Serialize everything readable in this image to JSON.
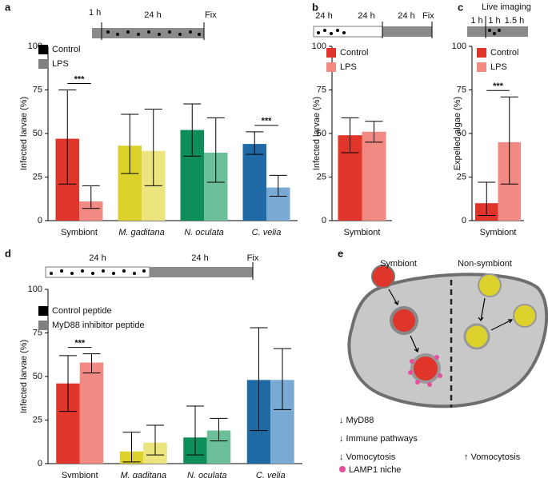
{
  "chart_data": [
    {
      "type": "bar",
      "panel": "a",
      "ylabel": "Infected larvae (%)",
      "ylim": [
        0,
        100
      ],
      "yticks": [
        0,
        25,
        50,
        75,
        100
      ],
      "timeline": [
        "1 h",
        "24 h",
        "Fix"
      ],
      "categories": [
        "Symbiont",
        "M. gaditana",
        "N. oculata",
        "C. velia"
      ],
      "series": [
        {
          "name": "Control",
          "color": "#000000",
          "colors": [
            "#e0352b",
            "#ddd12b",
            "#0e8f5a",
            "#1f69a4"
          ],
          "values": [
            47,
            43,
            52,
            44
          ],
          "err_low": [
            21,
            27,
            37,
            38
          ],
          "err_high": [
            75,
            61,
            67,
            51
          ]
        },
        {
          "name": "LPS",
          "color": "#808080",
          "colors": [
            "#f08a82",
            "#ece47c",
            "#6bbf99",
            "#79aad3"
          ],
          "values": [
            11,
            40,
            39,
            19
          ],
          "err_low": [
            7,
            20,
            22,
            14
          ],
          "err_high": [
            20,
            64,
            59,
            26
          ]
        }
      ],
      "annotations": [
        {
          "text": "***",
          "category": "Symbiont"
        },
        {
          "text": "***",
          "category": "C. velia"
        }
      ]
    },
    {
      "type": "bar",
      "panel": "b",
      "ylabel": "Infected larvae (%)",
      "ylim": [
        0,
        100
      ],
      "yticks": [
        0,
        25,
        50,
        75,
        100
      ],
      "timeline": [
        "24 h",
        "24 h",
        "24 h",
        "Fix"
      ],
      "categories": [
        "Symbiont"
      ],
      "series": [
        {
          "name": "Control",
          "color": "#e0352b",
          "colors": [
            "#e0352b"
          ],
          "values": [
            49
          ],
          "err_low": [
            39
          ],
          "err_high": [
            59
          ]
        },
        {
          "name": "LPS",
          "color": "#f08a82",
          "colors": [
            "#f08a82"
          ],
          "values": [
            51
          ],
          "err_low": [
            45
          ],
          "err_high": [
            57
          ]
        }
      ],
      "annotations": []
    },
    {
      "type": "bar",
      "panel": "c",
      "ylabel": "Expelled algae (%)",
      "ylim": [
        0,
        100
      ],
      "yticks": [
        0,
        25,
        50,
        75,
        100
      ],
      "timeline": [
        "Live imaging",
        "1 h",
        "1 h",
        "1.5 h"
      ],
      "categories": [
        "Symbiont"
      ],
      "series": [
        {
          "name": "Control",
          "color": "#e0352b",
          "colors": [
            "#e0352b"
          ],
          "values": [
            10
          ],
          "err_low": [
            3
          ],
          "err_high": [
            22
          ]
        },
        {
          "name": "LPS",
          "color": "#f08a82",
          "colors": [
            "#f08a82"
          ],
          "values": [
            45
          ],
          "err_low": [
            21
          ],
          "err_high": [
            71
          ]
        }
      ],
      "annotations": [
        {
          "text": "***",
          "category": "Symbiont"
        }
      ]
    },
    {
      "type": "bar",
      "panel": "d",
      "ylabel": "Infected larvae (%)",
      "ylim": [
        0,
        100
      ],
      "yticks": [
        0,
        25,
        50,
        75,
        100
      ],
      "timeline": [
        "24 h",
        "24 h",
        "Fix"
      ],
      "categories": [
        "Symbiont",
        "M. gaditana",
        "N. oculata",
        "C. velia"
      ],
      "series": [
        {
          "name": "Control peptide",
          "color": "#000000",
          "colors": [
            "#e0352b",
            "#ddd12b",
            "#0e8f5a",
            "#1f69a4"
          ],
          "values": [
            46,
            7,
            15,
            48
          ],
          "err_low": [
            30,
            1,
            5,
            19
          ],
          "err_high": [
            62,
            18,
            33,
            78
          ]
        },
        {
          "name": "MyD88 inhibitor peptide",
          "color": "#808080",
          "colors": [
            "#f08a82",
            "#ece47c",
            "#6bbf99",
            "#79aad3"
          ],
          "values": [
            58,
            12,
            19,
            48
          ],
          "err_low": [
            52,
            5,
            13,
            31
          ],
          "err_high": [
            63,
            22,
            26,
            66
          ]
        }
      ],
      "annotations": [
        {
          "text": "***",
          "category": "Symbiont"
        }
      ]
    }
  ],
  "diagram": {
    "panel": "e",
    "left_title": "Symbiont",
    "right_title": "Non-symbiont",
    "left_notes": [
      "↓ MyD88",
      "↓ Immune pathways",
      "↓ Vomocytosis"
    ],
    "legend": "LAMP1 niche",
    "right_note": "↑ Vomocytosis"
  }
}
